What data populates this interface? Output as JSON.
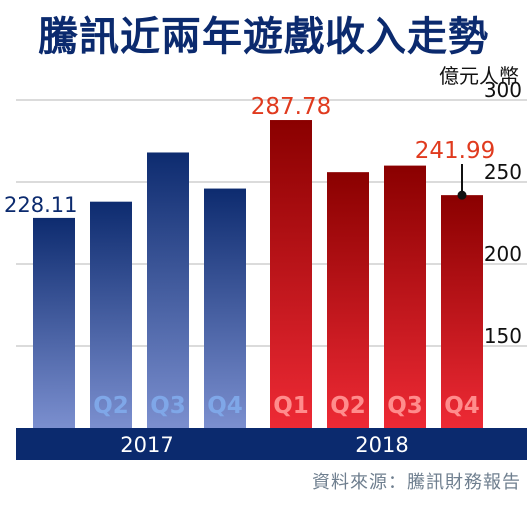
{
  "title": "騰訊近兩年遊戲收入走勢",
  "unit": "億元人幣",
  "source": "資料來源：騰訊財務報告",
  "colors": {
    "navy": "#0b2a6e",
    "red_top": "#8a0000",
    "red_bottom": "#ee2a35",
    "blue_top": "#0d2b6f",
    "blue_bottom": "#7b8fcf",
    "q_label_2017": "#7fa7e8",
    "q_label_2018": "#ff8c8c",
    "callout_red": "#e03a1e"
  },
  "chart_data": {
    "type": "bar",
    "title": "騰訊近兩年遊戲收入走勢",
    "ylabel": "億元人幣",
    "ylim": [
      100,
      300
    ],
    "yticks": [
      "150",
      "200",
      "250",
      "300"
    ],
    "grid": true,
    "groups": [
      {
        "year": "2017",
        "bars": [
          {
            "q": "",
            "value": 228.11,
            "label": "228.11"
          },
          {
            "q": "Q2",
            "value": 238
          },
          {
            "q": "Q3",
            "value": 268
          },
          {
            "q": "Q4",
            "value": 246
          }
        ]
      },
      {
        "year": "2018",
        "bars": [
          {
            "q": "Q1",
            "value": 287.78,
            "label": "287.78"
          },
          {
            "q": "Q2",
            "value": 256
          },
          {
            "q": "Q3",
            "value": 260
          },
          {
            "q": "Q4",
            "value": 241.99,
            "label": "241.99"
          }
        ]
      }
    ]
  }
}
